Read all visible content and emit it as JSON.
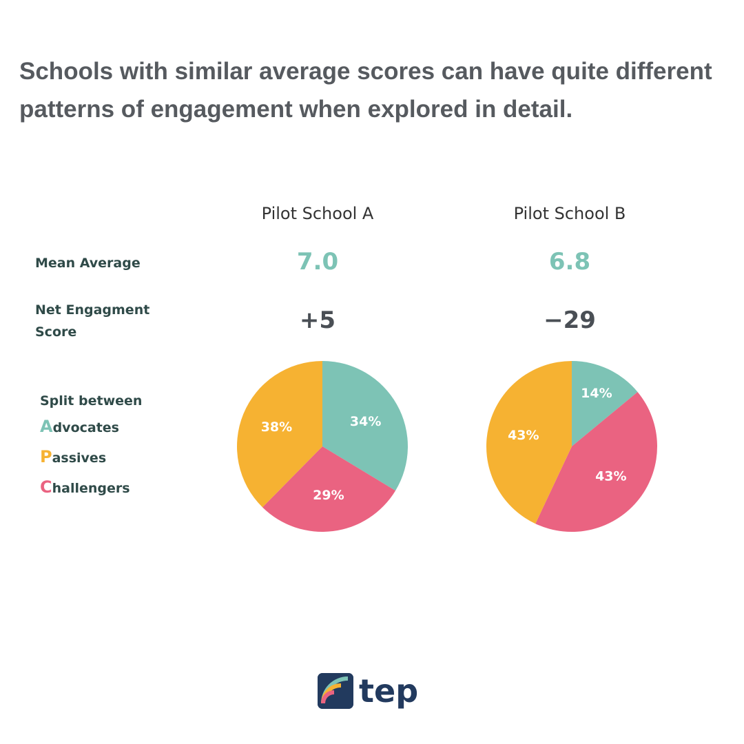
{
  "headline": "Schools with similar average scores can have quite different patterns of engagement when explored in detail.",
  "row_labels": {
    "mean": "Mean Average",
    "nes_line1": "Net Engagment",
    "nes_line2": "Score"
  },
  "legend": {
    "title": "Split between",
    "items": [
      {
        "initial": "A",
        "rest": "dvocates",
        "color": "#7dc3b5"
      },
      {
        "initial": "P",
        "rest": "assives",
        "color": "#f6b232"
      },
      {
        "initial": "C",
        "rest": "hallengers",
        "color": "#ea6381"
      }
    ]
  },
  "schools": [
    {
      "name": "Pilot School A",
      "mean": "7.0",
      "nes": "+5"
    },
    {
      "name": "Pilot School B",
      "mean": "6.8",
      "nes": "−29"
    }
  ],
  "logo": {
    "text": "tep",
    "icon": "rainbow-logo-icon"
  },
  "chart_data": [
    {
      "type": "pie",
      "title": "Pilot School A",
      "labels": [
        "Advocates",
        "Challengers",
        "Passives"
      ],
      "values": [
        34,
        29,
        38
      ],
      "value_labels": [
        "34%",
        "29%",
        "38%"
      ],
      "colors": [
        "#7dc3b5",
        "#ea6381",
        "#f6b232"
      ],
      "start": "top, clockwise"
    },
    {
      "type": "pie",
      "title": "Pilot School B",
      "labels": [
        "Advocates",
        "Challengers",
        "Passives"
      ],
      "values": [
        14,
        43,
        43
      ],
      "value_labels": [
        "14%",
        "43%",
        "43%"
      ],
      "colors": [
        "#7dc3b5",
        "#ea6381",
        "#f6b232"
      ],
      "start": "top, clockwise"
    }
  ]
}
